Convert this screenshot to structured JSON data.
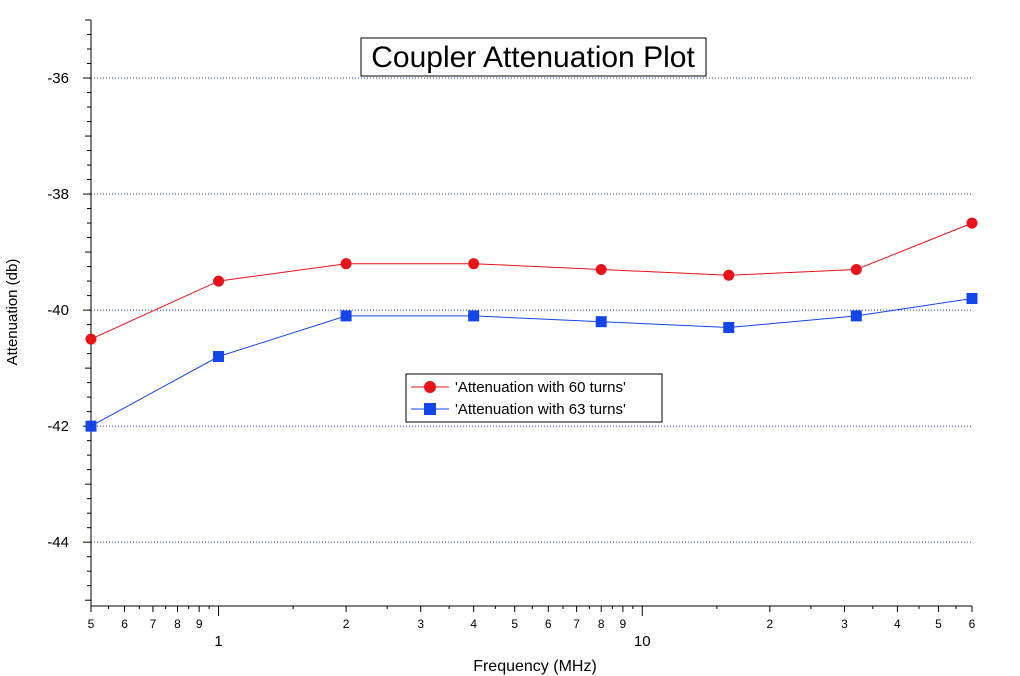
{
  "chart_data": {
    "type": "line",
    "title": "Coupler Attenuation Plot",
    "xlabel": "Frequency (MHz)",
    "ylabel": "Attenuation (db)",
    "x_scale": "log",
    "xlim": [
      0.5,
      60
    ],
    "ylim": [
      -45.1,
      -35.0
    ],
    "grid": "horizontal dotted",
    "legend_position": "center",
    "x_major_ticks": [
      {
        "value": 1,
        "label": "1"
      },
      {
        "value": 10,
        "label": "10"
      }
    ],
    "x_minor_ticks": [
      {
        "value": 0.5,
        "label": "5"
      },
      {
        "value": 0.6,
        "label": "6"
      },
      {
        "value": 0.7,
        "label": "7"
      },
      {
        "value": 0.8,
        "label": "8"
      },
      {
        "value": 0.9,
        "label": "9"
      },
      {
        "value": 2,
        "label": "2"
      },
      {
        "value": 3,
        "label": "3"
      },
      {
        "value": 4,
        "label": "4"
      },
      {
        "value": 5,
        "label": "5"
      },
      {
        "value": 6,
        "label": "6"
      },
      {
        "value": 7,
        "label": "7"
      },
      {
        "value": 8,
        "label": "8"
      },
      {
        "value": 9,
        "label": "9"
      },
      {
        "value": 20,
        "label": "2"
      },
      {
        "value": 30,
        "label": "3"
      },
      {
        "value": 40,
        "label": "4"
      },
      {
        "value": 50,
        "label": "5"
      },
      {
        "value": 60,
        "label": "6"
      }
    ],
    "y_ticks": [
      -44,
      -42,
      -40,
      -38,
      -36
    ],
    "series": [
      {
        "name": "'Attenuation with 60 turns'",
        "color": "#e8131a",
        "marker": "circle",
        "x": [
          0.5,
          1,
          2,
          4,
          8,
          16,
          32,
          60
        ],
        "y": [
          -40.5,
          -39.5,
          -39.2,
          -39.2,
          -39.3,
          -39.4,
          -39.3,
          -38.5
        ]
      },
      {
        "name": "'Attenuation with 63 turns'",
        "color": "#1345e8",
        "marker": "square",
        "x": [
          0.5,
          1,
          2,
          4,
          8,
          16,
          32,
          60
        ],
        "y": [
          -42.0,
          -40.8,
          -40.1,
          -40.1,
          -40.2,
          -40.3,
          -40.1,
          -39.8
        ]
      }
    ]
  }
}
